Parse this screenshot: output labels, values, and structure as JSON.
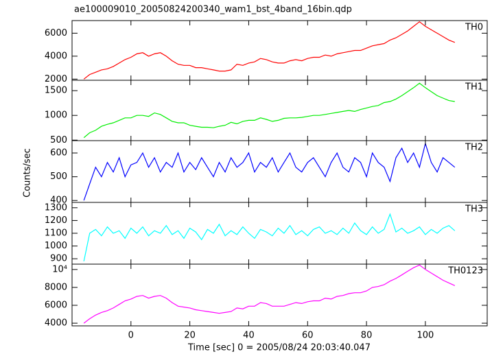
{
  "chart_data": {
    "type": "line",
    "title": "ae100009010_20050824200340_wam1_bst_4band_16bin.qdp",
    "xlabel": "Time [sec] 0 = 2005/08/24 20:03:40.047",
    "ylabel": "Counts/sec",
    "xlim": [
      -20,
      121
    ],
    "xticks": [
      0,
      20,
      40,
      60,
      80,
      100
    ],
    "x": [
      -16,
      -14,
      -12,
      -10,
      -8,
      -6,
      -4,
      -2,
      0,
      2,
      4,
      6,
      8,
      10,
      12,
      14,
      16,
      18,
      20,
      22,
      24,
      26,
      28,
      30,
      32,
      34,
      36,
      38,
      40,
      42,
      44,
      46,
      48,
      50,
      52,
      54,
      56,
      58,
      60,
      62,
      64,
      66,
      68,
      70,
      72,
      74,
      76,
      78,
      80,
      82,
      84,
      86,
      88,
      90,
      92,
      94,
      96,
      98,
      100,
      102,
      104,
      106,
      108,
      110
    ],
    "series": [
      {
        "name": "TH0",
        "color": "#ff0000",
        "ylim": [
          1900,
          7100
        ],
        "yticks": [
          2000,
          4000,
          6000
        ],
        "values": [
          2000,
          2400,
          2600,
          2800,
          2900,
          3100,
          3400,
          3700,
          3900,
          4200,
          4300,
          4000,
          4200,
          4300,
          4000,
          3600,
          3300,
          3200,
          3200,
          3000,
          3000,
          2900,
          2800,
          2700,
          2700,
          2800,
          3300,
          3200,
          3400,
          3500,
          3800,
          3700,
          3500,
          3400,
          3400,
          3600,
          3700,
          3600,
          3800,
          3900,
          3900,
          4100,
          4000,
          4200,
          4300,
          4400,
          4500,
          4500,
          4700,
          4900,
          5000,
          5100,
          5400,
          5600,
          5900,
          6200,
          6600,
          7000,
          6600,
          6300,
          6000,
          5700,
          5400,
          5200
        ]
      },
      {
        "name": "TH1",
        "color": "#00ee00",
        "ylim": [
          490,
          1710
        ],
        "yticks": [
          500,
          1000,
          1500
        ],
        "values": [
          550,
          650,
          700,
          780,
          820,
          850,
          900,
          950,
          950,
          1000,
          1000,
          980,
          1050,
          1020,
          950,
          880,
          850,
          850,
          800,
          780,
          760,
          760,
          750,
          780,
          800,
          860,
          830,
          880,
          900,
          900,
          950,
          920,
          880,
          900,
          940,
          950,
          950,
          960,
          980,
          1000,
          1000,
          1020,
          1040,
          1060,
          1080,
          1100,
          1080,
          1120,
          1150,
          1180,
          1200,
          1260,
          1280,
          1330,
          1400,
          1480,
          1560,
          1650,
          1560,
          1480,
          1400,
          1350,
          1300,
          1280
        ]
      },
      {
        "name": "TH2",
        "color": "#0000ff",
        "ylim": [
          392,
          652
        ],
        "yticks": [
          400,
          500,
          600
        ],
        "values": [
          400,
          470,
          540,
          500,
          560,
          520,
          580,
          500,
          550,
          560,
          600,
          540,
          580,
          520,
          560,
          540,
          600,
          520,
          560,
          530,
          580,
          540,
          500,
          560,
          520,
          580,
          540,
          560,
          600,
          520,
          560,
          540,
          580,
          520,
          560,
          600,
          540,
          520,
          560,
          580,
          540,
          500,
          560,
          600,
          540,
          520,
          580,
          560,
          500,
          600,
          560,
          540,
          480,
          580,
          620,
          560,
          600,
          540,
          640,
          560,
          520,
          580,
          560,
          540
        ]
      },
      {
        "name": "TH3",
        "color": "#00ffff",
        "ylim": [
          858,
          1342
        ],
        "yticks": [
          900,
          1000,
          1100,
          1200,
          1300
        ],
        "values": [
          880,
          1100,
          1130,
          1080,
          1150,
          1100,
          1120,
          1060,
          1140,
          1100,
          1150,
          1080,
          1120,
          1100,
          1160,
          1090,
          1120,
          1060,
          1140,
          1110,
          1050,
          1130,
          1100,
          1170,
          1080,
          1120,
          1090,
          1150,
          1100,
          1060,
          1130,
          1110,
          1080,
          1140,
          1100,
          1160,
          1090,
          1120,
          1080,
          1130,
          1150,
          1100,
          1120,
          1090,
          1140,
          1100,
          1180,
          1120,
          1090,
          1150,
          1100,
          1130,
          1250,
          1110,
          1140,
          1100,
          1120,
          1150,
          1090,
          1130,
          1100,
          1140,
          1160,
          1120
        ]
      },
      {
        "name": "TH0123",
        "color": "#ff00ff",
        "ylim": [
          3700,
          10600
        ],
        "yticks": [
          4000,
          6000,
          8000,
          {
            "value": 10000,
            "label": "10⁴"
          }
        ],
        "values": [
          4000,
          4500,
          4900,
          5200,
          5400,
          5700,
          6100,
          6500,
          6700,
          7000,
          7100,
          6800,
          7000,
          7100,
          6800,
          6300,
          5900,
          5800,
          5700,
          5500,
          5400,
          5300,
          5200,
          5100,
          5200,
          5300,
          5700,
          5600,
          5900,
          5900,
          6300,
          6200,
          5900,
          5900,
          5900,
          6100,
          6300,
          6200,
          6400,
          6500,
          6500,
          6800,
          6700,
          7000,
          7100,
          7300,
          7400,
          7400,
          7600,
          8000,
          8100,
          8300,
          8700,
          9000,
          9400,
          9800,
          10200,
          10500,
          10000,
          9600,
          9200,
          8800,
          8500,
          8200
        ]
      }
    ]
  }
}
